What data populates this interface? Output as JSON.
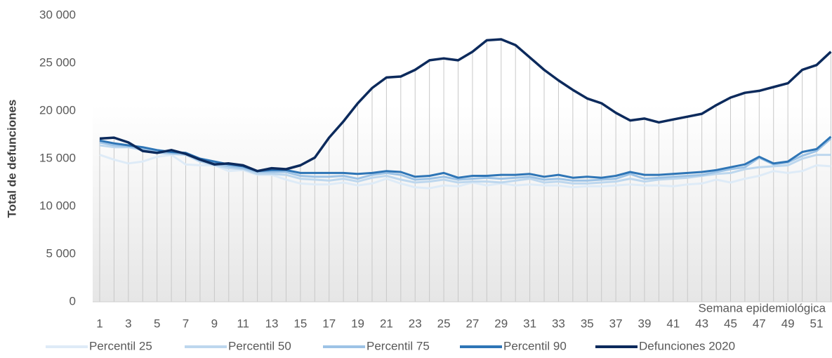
{
  "chart_data": {
    "type": "line",
    "y_label": "Total de defunciones",
    "x_label": "Semana epidemiológica",
    "categories": [
      1,
      null,
      3,
      null,
      5,
      null,
      7,
      null,
      9,
      null,
      11,
      null,
      13,
      null,
      15,
      null,
      17,
      null,
      19,
      null,
      21,
      null,
      23,
      null,
      25,
      null,
      27,
      null,
      29,
      null,
      31,
      null,
      33,
      null,
      35,
      null,
      37,
      null,
      39,
      null,
      41,
      null,
      43,
      null,
      45,
      null,
      47,
      null,
      49,
      null,
      51,
      null
    ],
    "ylim": [
      0,
      30000
    ],
    "yticks": [
      0,
      {
        "value": 5000,
        "label": "5 000"
      },
      {
        "value": 10000,
        "label": "10 000"
      },
      {
        "value": 15000,
        "label": "15 000"
      },
      {
        "value": 20000,
        "label": "20 000"
      },
      {
        "value": 25000,
        "label": "25 000"
      },
      {
        "value": 30000,
        "label": "30 000"
      }
    ],
    "legend": "bottom",
    "series": [
      {
        "name": "Percentil 25",
        "color": "#deebf7",
        "values": [
          15400,
          14900,
          14500,
          14700,
          15200,
          15400,
          14400,
          14300,
          14300,
          13700,
          13800,
          13300,
          13300,
          12800,
          12400,
          12300,
          12300,
          12500,
          12200,
          12400,
          12900,
          12400,
          12000,
          11900,
          12200,
          12100,
          12500,
          12200,
          12400,
          12200,
          12300,
          12200,
          12200,
          12000,
          12100,
          12100,
          12200,
          12300,
          12200,
          12200,
          12100,
          12300,
          12400,
          12800,
          12500,
          12900,
          13200,
          13700,
          13500,
          13700,
          14300,
          14200
        ]
      },
      {
        "name": "Percentil 50",
        "color": "#bdd7ee",
        "values": [
          16400,
          16200,
          16200,
          15900,
          15600,
          15500,
          15400,
          14700,
          14300,
          14000,
          13900,
          13400,
          13400,
          13300,
          12900,
          12800,
          12700,
          12900,
          12600,
          13000,
          13200,
          12800,
          12500,
          12600,
          12800,
          12500,
          12600,
          12600,
          12500,
          12700,
          12900,
          12500,
          12600,
          12400,
          12400,
          12500,
          12600,
          12900,
          12600,
          12800,
          12900,
          13000,
          13200,
          13400,
          13500,
          13900,
          14100,
          14200,
          14300,
          15000,
          15400,
          15400
        ]
      },
      {
        "name": "Percentil 75",
        "color": "#9dc3e6",
        "values": [
          16700,
          16400,
          16300,
          16000,
          15700,
          15600,
          15500,
          14800,
          14500,
          14200,
          14000,
          13600,
          13600,
          13600,
          13200,
          13100,
          13100,
          13200,
          12900,
          13300,
          13500,
          13300,
          12800,
          12900,
          13100,
          12800,
          12900,
          13000,
          12900,
          13000,
          13100,
          12800,
          12900,
          12700,
          12700,
          12800,
          12900,
          13400,
          12900,
          13000,
          13100,
          13200,
          13300,
          13600,
          13900,
          14100,
          15100,
          14400,
          14600,
          15300,
          15800,
          17100
        ]
      },
      {
        "name": "Percentil 90",
        "color": "#2e75b6",
        "values": [
          16900,
          16600,
          16400,
          16200,
          15900,
          15700,
          15600,
          15000,
          14700,
          14400,
          14200,
          13700,
          13800,
          13800,
          13500,
          13500,
          13500,
          13500,
          13400,
          13500,
          13700,
          13600,
          13100,
          13200,
          13500,
          13000,
          13200,
          13200,
          13300,
          13300,
          13400,
          13100,
          13300,
          13000,
          13100,
          13000,
          13200,
          13600,
          13300,
          13300,
          13400,
          13500,
          13600,
          13800,
          14100,
          14400,
          15200,
          14500,
          14700,
          15700,
          16000,
          17300
        ]
      },
      {
        "name": "Defunciones 2020",
        "color": "#0c2a5c",
        "values": [
          17100,
          17200,
          16700,
          15800,
          15600,
          15900,
          15500,
          14900,
          14400,
          14500,
          14300,
          13700,
          14000,
          13900,
          14300,
          15100,
          17200,
          18900,
          20800,
          22400,
          23500,
          23600,
          24300,
          25300,
          25500,
          25300,
          26200,
          27400,
          27500,
          26900,
          25600,
          24300,
          23200,
          22200,
          21300,
          20800,
          19800,
          19000,
          19200,
          18800,
          19100,
          19400,
          19700,
          20600,
          21400,
          21900,
          22100,
          22500,
          22900,
          24300,
          24800,
          26200
        ]
      }
    ]
  }
}
